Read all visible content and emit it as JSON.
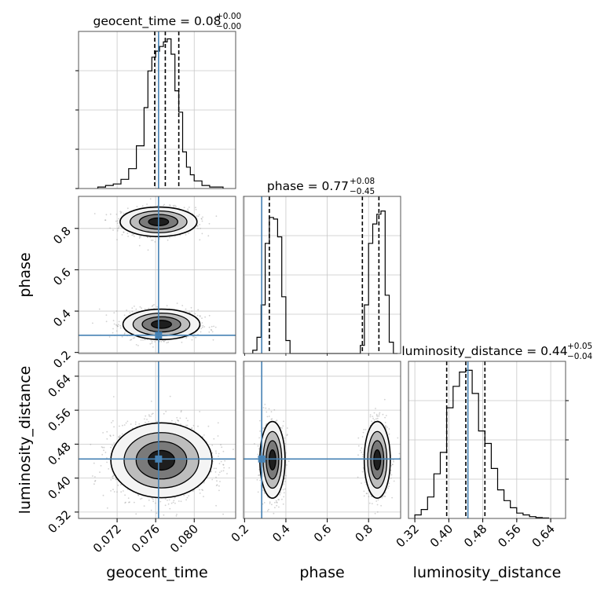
{
  "chart_data": {
    "type": "scatter",
    "colors": {
      "truth": "#4682b4",
      "hist": "#000000",
      "points": "#9a9a9a",
      "grid": "#c8c8c8"
    },
    "parameters": [
      "geocent_time",
      "phase",
      "luminosity_distance"
    ],
    "titles": {
      "geocent_time": {
        "main": "geocent_time = 0.08",
        "sup": "+0.00",
        "sub": "−0.00"
      },
      "phase": {
        "main": "phase = 0.77",
        "sup": "+0.08",
        "sub": "−0.45"
      },
      "luminosity_distance": {
        "main": "luminosity_distance = 0.44",
        "sup": "+0.05",
        "sub": "−0.04"
      }
    },
    "xlabels": {
      "geocent_time": "geocent_time",
      "phase": "phase",
      "luminosity_distance": "luminosity_distance"
    },
    "ylabels": {
      "phase": "phase",
      "luminosity_distance": "luminosity_distance"
    },
    "ranges": {
      "geocent_time": [
        0.068,
        0.0843
      ],
      "phase": [
        0.195,
        0.955
      ],
      "luminosity_distance": [
        0.305,
        0.675
      ]
    },
    "ticks": {
      "geocent_time": [
        "0.072",
        "0.076",
        "0.080"
      ],
      "phase": [
        "0.2",
        "0.4",
        "0.6",
        "0.8"
      ],
      "luminosity_distance": [
        "0.32",
        "0.40",
        "0.48",
        "0.56",
        "0.64"
      ]
    },
    "truth": {
      "geocent_time": 0.0763,
      "phase": 0.283,
      "luminosity_distance": 0.445
    },
    "quantiles": {
      "geocent_time": [
        0.0759,
        0.077,
        0.0784
      ],
      "phase": [
        0.32,
        0.77,
        0.85
      ],
      "luminosity_distance": [
        0.395,
        0.44,
        0.485
      ]
    },
    "histograms": {
      "geocent_time": {
        "edges": [
          0.07,
          0.0708,
          0.0716,
          0.0724,
          0.0732,
          0.074,
          0.0748,
          0.0752,
          0.0756,
          0.076,
          0.0764,
          0.0768,
          0.0772,
          0.0776,
          0.078,
          0.0784,
          0.0788,
          0.0792,
          0.0796,
          0.08,
          0.0808,
          0.0816,
          0.083
        ],
        "counts": [
          1,
          2,
          3,
          6,
          13,
          28,
          53,
          77,
          86,
          90,
          93,
          96,
          98,
          88,
          64,
          50,
          24,
          14,
          9,
          5,
          2,
          1
        ]
      },
      "phase": {
        "edges": [
          0.24,
          0.26,
          0.28,
          0.3,
          0.32,
          0.34,
          0.36,
          0.38,
          0.4,
          0.42,
          0.74,
          0.76,
          0.78,
          0.8,
          0.82,
          0.84,
          0.86,
          0.88,
          0.9,
          0.92,
          0.94
        ],
        "counts": [
          2,
          10,
          30,
          68,
          84,
          83,
          72,
          35,
          8,
          0,
          0,
          5,
          30,
          68,
          80,
          86,
          88,
          36,
          7,
          0
        ],
        "ymax": 97
      },
      "luminosity_distance": {
        "edges": [
          0.32,
          0.335,
          0.35,
          0.365,
          0.38,
          0.395,
          0.41,
          0.425,
          0.44,
          0.455,
          0.47,
          0.485,
          0.5,
          0.515,
          0.53,
          0.545,
          0.56,
          0.575,
          0.59,
          0.605,
          0.62,
          0.635
        ],
        "counts": [
          2,
          5,
          12,
          25,
          37,
          62,
          74,
          82,
          83,
          70,
          49,
          42,
          28,
          16,
          10,
          6,
          3,
          2,
          1,
          0.5,
          0.3
        ],
        "ymax": 88
      }
    },
    "blobs_2d": {
      "phase_vs_geocent_time": [
        {
          "cx": 0.0763,
          "cy": 0.832,
          "sx": 0.0019,
          "sy": 0.034,
          "n": 950
        },
        {
          "cx": 0.0766,
          "cy": 0.336,
          "sx": 0.0019,
          "sy": 0.035,
          "n": 950
        }
      ],
      "luminosity_distance_vs_geocent_time": [
        {
          "cx": 0.0766,
          "cy": 0.442,
          "sx": 0.0025,
          "sy": 0.042,
          "n": 1800
        }
      ],
      "luminosity_distance_vs_phase": [
        {
          "cx": 0.335,
          "cy": 0.443,
          "sx": 0.029,
          "sy": 0.043,
          "n": 950
        },
        {
          "cx": 0.842,
          "cy": 0.443,
          "sx": 0.03,
          "sy": 0.043,
          "n": 950
        }
      ]
    }
  }
}
